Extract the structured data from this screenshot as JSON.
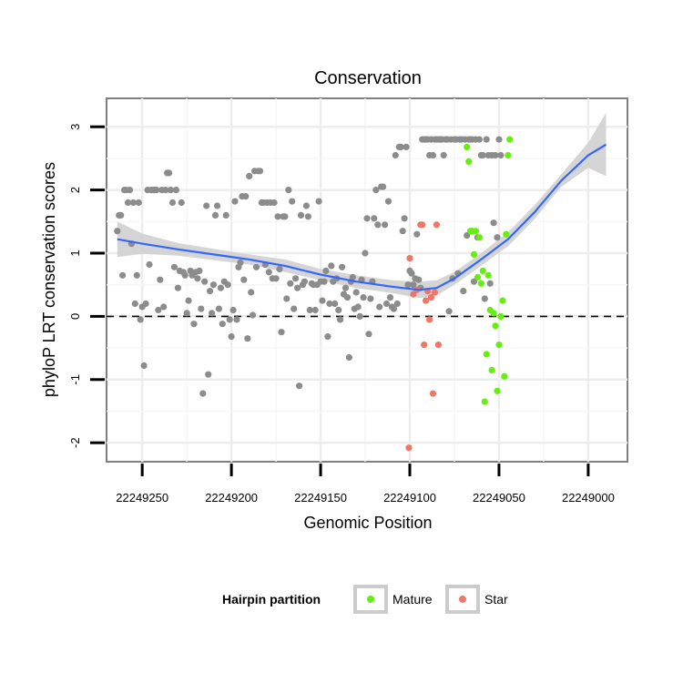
{
  "chart_data": {
    "type": "scatter",
    "title": "Conservation",
    "xlabel": "Genomic Position",
    "ylabel": "phyloP LRT conservation scores",
    "xlim": [
      22249270,
      22248978
    ],
    "ylim": [
      -2.3,
      3.45
    ],
    "x_reversed": true,
    "xticks": [
      22249250,
      22249200,
      22249150,
      22249100,
      22249050,
      22249000
    ],
    "yticks": [
      -2,
      -1,
      0,
      1,
      2,
      3
    ],
    "hline": 0,
    "legend": {
      "title": "Hairpin partition",
      "position": "bottom",
      "entries": [
        {
          "label": "Mature",
          "color": "#7CFC00"
        },
        {
          "label": "Star",
          "color": "#F08070"
        }
      ]
    },
    "colors": {
      "other": "#8c8c8c",
      "Mature": "#66ee11",
      "Star": "#ee7766",
      "smooth": "#3366ff",
      "band": "#d0d0d0"
    },
    "series": [
      {
        "name": "Other",
        "points": [
          [
            22249264,
            1.35
          ],
          [
            22249263,
            1.6
          ],
          [
            22249262,
            1.6
          ],
          [
            22249261,
            0.65
          ],
          [
            22249260,
            2.0
          ],
          [
            22249259,
            2.0
          ],
          [
            22249258,
            1.8
          ],
          [
            22249257,
            2.0
          ],
          [
            22249256,
            1.15
          ],
          [
            22249255,
            1.8
          ],
          [
            22249254,
            0.2
          ],
          [
            22249253,
            0.65
          ],
          [
            22249252,
            1.8
          ],
          [
            22249251,
            -0.05
          ],
          [
            22249250,
            0.15
          ],
          [
            22249249,
            -0.78
          ],
          [
            22249248,
            0.2
          ],
          [
            22249247,
            2.0
          ],
          [
            22249246,
            0.82
          ],
          [
            22249245,
            2.0
          ],
          [
            22249244,
            2.0
          ],
          [
            22249243,
            2.0
          ],
          [
            22249242,
            2.0
          ],
          [
            22249241,
            0.1
          ],
          [
            22249240,
            0.58
          ],
          [
            22249239,
            2.0
          ],
          [
            22249238,
            0.15
          ],
          [
            22249237,
            2.0
          ],
          [
            22249236,
            2.27
          ],
          [
            22249235,
            2.27
          ],
          [
            22249234,
            2.0
          ],
          [
            22249233,
            1.8
          ],
          [
            22249232,
            0.78
          ],
          [
            22249231,
            2.0
          ],
          [
            22249230,
            0.45
          ],
          [
            22249229,
            0.72
          ],
          [
            22249228,
            1.8
          ],
          [
            22249227,
            0.7
          ],
          [
            22249226,
            0.65
          ],
          [
            22249225,
            0.05
          ],
          [
            22249224,
            0.25
          ],
          [
            22249223,
            0.72
          ],
          [
            22249222,
            0.65
          ],
          [
            22249221,
            -0.12
          ],
          [
            22249220,
            0.7
          ],
          [
            22249219,
            0.6
          ],
          [
            22249218,
            0.72
          ],
          [
            22249217,
            0.12
          ],
          [
            22249216,
            -1.22
          ],
          [
            22249215,
            0.55
          ],
          [
            22249214,
            1.75
          ],
          [
            22249213,
            -0.92
          ],
          [
            22249212,
            0.4
          ],
          [
            22249211,
            0.05
          ],
          [
            22249210,
            0.5
          ],
          [
            22249209,
            1.6
          ],
          [
            22249208,
            1.75
          ],
          [
            22249207,
            0.12
          ],
          [
            22249206,
            0.45
          ],
          [
            22249205,
            -0.12
          ],
          [
            22249204,
            0.55
          ],
          [
            22249203,
            1.6
          ],
          [
            22249202,
            0.5
          ],
          [
            22249201,
            -0.05
          ],
          [
            22249200,
            -0.32
          ],
          [
            22249199,
            0.1
          ],
          [
            22249198,
            1.82
          ],
          [
            22249197,
            -0.05
          ],
          [
            22249196,
            0.78
          ],
          [
            22249195,
            0.85
          ],
          [
            22249194,
            1.9
          ],
          [
            22249193,
            0.58
          ],
          [
            22249192,
            1.9
          ],
          [
            22249191,
            -0.35
          ],
          [
            22249190,
            2.22
          ],
          [
            22249189,
            0.38
          ],
          [
            22249188,
            0.02
          ],
          [
            22249187,
            2.3
          ],
          [
            22249186,
            0.78
          ],
          [
            22249185,
            2.3
          ],
          [
            22249184,
            2.3
          ],
          [
            22249183,
            1.8
          ],
          [
            22249182,
            1.8
          ],
          [
            22249181,
            0.82
          ],
          [
            22249180,
            1.8
          ],
          [
            22249179,
            0.7
          ],
          [
            22249178,
            1.8
          ],
          [
            22249177,
            0.6
          ],
          [
            22249176,
            1.8
          ],
          [
            22249175,
            0.6
          ],
          [
            22249174,
            1.58
          ],
          [
            22249173,
            0.75
          ],
          [
            22249172,
            -0.25
          ],
          [
            22249171,
            1.58
          ],
          [
            22249170,
            1.58
          ],
          [
            22249169,
            0.28
          ],
          [
            22249168,
            2.0
          ],
          [
            22249167,
            0.52
          ],
          [
            22249166,
            1.82
          ],
          [
            22249165,
            0.12
          ],
          [
            22249164,
            0.6
          ],
          [
            22249163,
            0.45
          ],
          [
            22249162,
            -1.1
          ],
          [
            22249161,
            1.6
          ],
          [
            22249160,
            0.5
          ],
          [
            22249159,
            0.55
          ],
          [
            22249158,
            1.75
          ],
          [
            22249157,
            1.58
          ],
          [
            22249156,
            0.1
          ],
          [
            22249155,
            0.52
          ],
          [
            22249154,
            0.5
          ],
          [
            22249153,
            0.1
          ],
          [
            22249152,
            0.5
          ],
          [
            22249151,
            1.82
          ],
          [
            22249150,
            0.55
          ],
          [
            22249149,
            0.25
          ],
          [
            22249148,
            0.55
          ],
          [
            22249147,
            0.72
          ],
          [
            22249146,
            -0.32
          ],
          [
            22249145,
            0.2
          ],
          [
            22249144,
            0.8
          ],
          [
            22249143,
            0.55
          ],
          [
            22249142,
            0.2
          ],
          [
            22249141,
            0.6
          ],
          [
            22249140,
            0.1
          ],
          [
            22249139,
            -0.05
          ],
          [
            22249138,
            0.78
          ],
          [
            22249137,
            0.35
          ],
          [
            22249136,
            0.45
          ],
          [
            22249135,
            0.3
          ],
          [
            22249134,
            -0.65
          ],
          [
            22249133,
            0.55
          ],
          [
            22249132,
            0.62
          ],
          [
            22249131,
            0.12
          ],
          [
            22249130,
            0.38
          ],
          [
            22249129,
            0.15
          ],
          [
            22249128,
            0.0
          ],
          [
            22249127,
            0.58
          ],
          [
            22249126,
            0.3
          ],
          [
            22249125,
            1.0
          ],
          [
            22249124,
            1.55
          ],
          [
            22249123,
            -0.28
          ],
          [
            22249122,
            0.28
          ],
          [
            22249121,
            0.55
          ],
          [
            22249120,
            1.55
          ],
          [
            22249119,
            2.0
          ],
          [
            22249118,
            1.45
          ],
          [
            22249117,
            0.15
          ],
          [
            22249116,
            2.05
          ],
          [
            22249115,
            2.05
          ],
          [
            22249114,
            1.45
          ],
          [
            22249113,
            0.2
          ],
          [
            22249112,
            1.82
          ],
          [
            22249111,
            0.3
          ],
          [
            22249110,
            0.15
          ],
          [
            22249109,
            0.12
          ],
          [
            22249108,
            2.55
          ],
          [
            22249107,
            0.2
          ],
          [
            22249106,
            2.68
          ],
          [
            22249105,
            2.68
          ],
          [
            22249104,
            1.35
          ],
          [
            22249103,
            1.55
          ],
          [
            22249102,
            2.68
          ],
          [
            22249101,
            0.5
          ],
          [
            22249100,
            0.72
          ],
          [
            22249099,
            0.68
          ],
          [
            22249098,
            0.5
          ],
          [
            22249097,
            0.6
          ],
          [
            22249096,
            1.3
          ],
          [
            22249095,
            0.58
          ],
          [
            22249094,
            0.45
          ],
          [
            22249093,
            2.8
          ],
          [
            22249092,
            2.8
          ],
          [
            22249091,
            2.8
          ],
          [
            22249090,
            2.8
          ],
          [
            22249089,
            2.55
          ],
          [
            22249088,
            2.8
          ],
          [
            22249087,
            2.55
          ],
          [
            22249086,
            2.8
          ],
          [
            22249085,
            2.8
          ],
          [
            22249084,
            2.8
          ],
          [
            22249083,
            2.8
          ],
          [
            22249082,
            2.8
          ],
          [
            22249081,
            2.55
          ],
          [
            22249080,
            2.8
          ],
          [
            22249079,
            2.8
          ],
          [
            22249078,
            0.08
          ],
          [
            22249077,
            2.8
          ],
          [
            22249076,
            0.6
          ],
          [
            22249075,
            2.8
          ],
          [
            22249074,
            2.8
          ],
          [
            22249073,
            0.68
          ],
          [
            22249072,
            2.8
          ],
          [
            22249071,
            2.8
          ],
          [
            22249070,
            0.4
          ],
          [
            22249069,
            2.8
          ],
          [
            22249068,
            1.28
          ],
          [
            22249067,
            2.8
          ],
          [
            22249066,
            2.8
          ],
          [
            22249065,
            2.8
          ],
          [
            22249064,
            0.55
          ],
          [
            22249063,
            2.8
          ],
          [
            22249062,
            1.25
          ],
          [
            22249061,
            2.8
          ],
          [
            22249060,
            2.55
          ],
          [
            22249059,
            2.55
          ],
          [
            22249058,
            0.28
          ],
          [
            22249057,
            2.8
          ],
          [
            22249056,
            2.55
          ],
          [
            22249055,
            0.52
          ],
          [
            22249054,
            2.55
          ],
          [
            22249053,
            1.48
          ],
          [
            22249052,
            2.55
          ],
          [
            22249051,
            1.25
          ],
          [
            22249050,
            2.8
          ],
          [
            22249049,
            2.55
          ]
        ]
      },
      {
        "name": "Mature",
        "points": [
          [
            22249068,
            2.68
          ],
          [
            22249067,
            2.45
          ],
          [
            22249066,
            1.35
          ],
          [
            22249065,
            1.35
          ],
          [
            22249064,
            0.98
          ],
          [
            22249063,
            1.35
          ],
          [
            22249062,
            0.62
          ],
          [
            22249061,
            1.25
          ],
          [
            22249060,
            0.52
          ],
          [
            22249059,
            0.72
          ],
          [
            22249058,
            -1.35
          ],
          [
            22249057,
            -0.6
          ],
          [
            22249056,
            0.65
          ],
          [
            22249055,
            0.1
          ],
          [
            22249054,
            -0.85
          ],
          [
            22249053,
            0.05
          ],
          [
            22249052,
            -0.15
          ],
          [
            22249051,
            -1.18
          ],
          [
            22249050,
            -0.45
          ],
          [
            22249049,
            0.0
          ],
          [
            22249048,
            0.25
          ],
          [
            22249047,
            -0.95
          ],
          [
            22249046,
            1.3
          ],
          [
            22249045,
            2.55
          ],
          [
            22249044,
            2.8
          ]
        ]
      },
      {
        "name": "Star",
        "points": [
          [
            22249100,
            0.92
          ],
          [
            22249098,
            0.35
          ],
          [
            22249096,
            0.42
          ],
          [
            22249094,
            1.45
          ],
          [
            22249093,
            1.45
          ],
          [
            22249092,
            -0.45
          ],
          [
            22249091,
            0.25
          ],
          [
            22249090,
            0.4
          ],
          [
            22249089,
            -0.05
          ],
          [
            22249088,
            0.3
          ],
          [
            22249087,
            -1.22
          ],
          [
            22249086,
            0.38
          ],
          [
            22249085,
            1.45
          ],
          [
            22249084,
            -0.45
          ],
          [
            22249100.5,
            -2.08
          ]
        ]
      }
    ],
    "smooth": [
      [
        22249264,
        1.22
      ],
      [
        22249250,
        1.15
      ],
      [
        22249230,
        1.06
      ],
      [
        22249210,
        0.98
      ],
      [
        22249190,
        0.9
      ],
      [
        22249170,
        0.8
      ],
      [
        22249150,
        0.66
      ],
      [
        22249130,
        0.55
      ],
      [
        22249110,
        0.47
      ],
      [
        22249095,
        0.42
      ],
      [
        22249085,
        0.45
      ],
      [
        22249075,
        0.6
      ],
      [
        22249060,
        0.9
      ],
      [
        22249045,
        1.22
      ],
      [
        22249030,
        1.65
      ],
      [
        22249015,
        2.15
      ],
      [
        22249000,
        2.55
      ],
      [
        22248990,
        2.72
      ]
    ],
    "band_halfwidth": [
      [
        22249264,
        0.28
      ],
      [
        22249250,
        0.16
      ],
      [
        22249230,
        0.1
      ],
      [
        22249210,
        0.09
      ],
      [
        22249190,
        0.08
      ],
      [
        22249170,
        0.1
      ],
      [
        22249150,
        0.09
      ],
      [
        22249130,
        0.1
      ],
      [
        22249110,
        0.1
      ],
      [
        22249095,
        0.13
      ],
      [
        22249085,
        0.12
      ],
      [
        22249075,
        0.1
      ],
      [
        22249060,
        0.1
      ],
      [
        22249045,
        0.11
      ],
      [
        22249030,
        0.11
      ],
      [
        22249015,
        0.1
      ],
      [
        22249000,
        0.2
      ],
      [
        22248990,
        0.5
      ]
    ]
  }
}
